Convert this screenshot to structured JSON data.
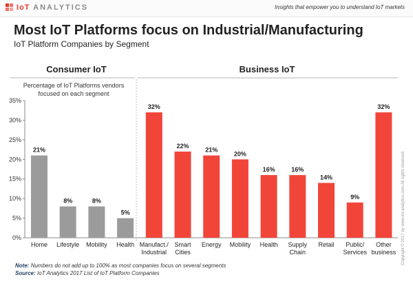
{
  "header": {
    "brand_left": "IoT",
    "brand_right": "ANALYTICS",
    "tagline": "Insights that empower you to understand IoT markets"
  },
  "title": "Most IoT Platforms focus on Industrial/Manufacturing",
  "subtitle": "IoT Platform Companies by Segment",
  "footnote": {
    "note_label": "Note:",
    "note_text": "Numbers do not add up to 100% as most companies focus on several segments",
    "source_label": "Source:",
    "source_text": "IoT Analytics 2017 List of IoT Platform Companies"
  },
  "copyright": "Copyright © 2017 by www.iot-analytics.com All rights reserved",
  "chart_data": {
    "type": "bar",
    "ylabel": "Percentage of IoT Platforms vendors focused on each segment",
    "ylabel_lines": [
      "Percentage of IoT Platforms vendors",
      "focused on each segment"
    ],
    "ylim": [
      0,
      35
    ],
    "yticks": [
      0,
      5,
      10,
      15,
      20,
      25,
      30,
      35
    ],
    "ytick_labels": [
      "0%",
      "5%",
      "10%",
      "15%",
      "20%",
      "25%",
      "30%",
      "35%"
    ],
    "grid": false,
    "groups": [
      {
        "name": "Consumer IoT",
        "color": "#9b9b9b"
      },
      {
        "name": "Business IoT",
        "color": "#f2453a"
      }
    ],
    "categories": [
      {
        "label": [
          "Home"
        ],
        "value": 21,
        "display": "21%",
        "group": 0
      },
      {
        "label": [
          "Lifestyle"
        ],
        "value": 8,
        "display": "8%",
        "group": 0
      },
      {
        "label": [
          "Mobility"
        ],
        "value": 8,
        "display": "8%",
        "group": 0
      },
      {
        "label": [
          "Health"
        ],
        "value": 5,
        "display": "5%",
        "group": 0
      },
      {
        "label": [
          "Manufact./",
          "Industrial"
        ],
        "value": 32,
        "display": "32%",
        "group": 1
      },
      {
        "label": [
          "Smart",
          "Cities"
        ],
        "value": 22,
        "display": "22%",
        "group": 1
      },
      {
        "label": [
          "Energy"
        ],
        "value": 21,
        "display": "21%",
        "group": 1
      },
      {
        "label": [
          "Mobility"
        ],
        "value": 20,
        "display": "20%",
        "group": 1
      },
      {
        "label": [
          "Health"
        ],
        "value": 16,
        "display": "16%",
        "group": 1
      },
      {
        "label": [
          "Supply",
          "Chain"
        ],
        "value": 16,
        "display": "16%",
        "group": 1
      },
      {
        "label": [
          "Retail"
        ],
        "value": 14,
        "display": "14%",
        "group": 1
      },
      {
        "label": [
          "Public/",
          "Services"
        ],
        "value": 9,
        "display": "9%",
        "group": 1
      },
      {
        "label": [
          "Other",
          "business"
        ],
        "value": 32,
        "display": "32%",
        "group": 1
      }
    ]
  }
}
